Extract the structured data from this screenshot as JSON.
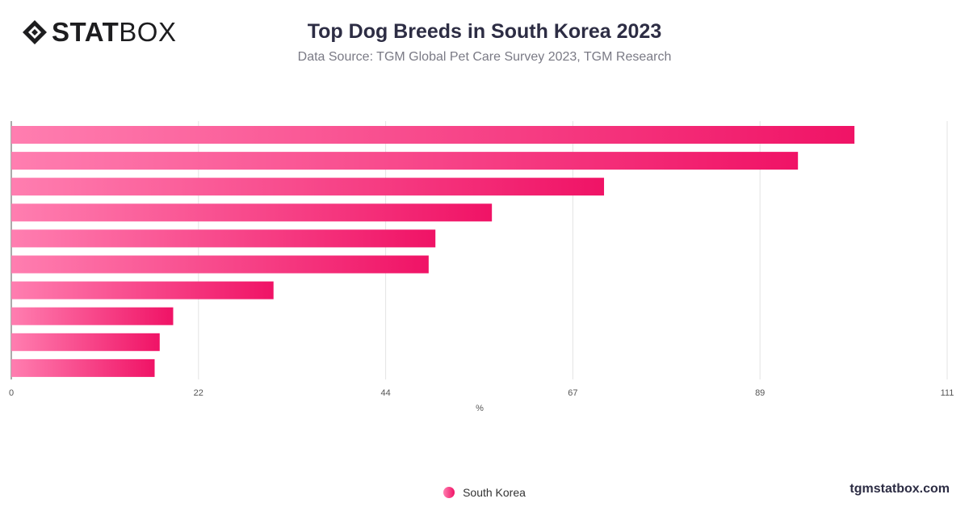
{
  "brand": {
    "logo_bold": "STAT",
    "logo_light": "BOX",
    "watermark": "tgmstatbox.com"
  },
  "colors": {
    "bar_start": "#ff7eb0",
    "bar_end": "#f01366",
    "grid": "#e3e3e3",
    "axis": "#555555"
  },
  "chart_data": {
    "type": "bar",
    "orientation": "horizontal",
    "title": "Top Dog Breeds in South Korea 2023",
    "subtitle": "Data Source: TGM Global Pet Care Survey 2023, TGM Research",
    "xlabel": "%",
    "xlim": [
      0,
      111
    ],
    "xticks": [
      "0",
      "22",
      "44",
      "67",
      "89",
      "111"
    ],
    "xtick_values": [
      0,
      22.2,
      44.4,
      66.6,
      88.8,
      111
    ],
    "grid": true,
    "legend_position": "bottom-center",
    "series": [
      {
        "name": "South Korea",
        "values": [
          100,
          93.3,
          70.3,
          57,
          50.3,
          49.5,
          31.1,
          19.2,
          17.6,
          17
        ]
      }
    ]
  }
}
